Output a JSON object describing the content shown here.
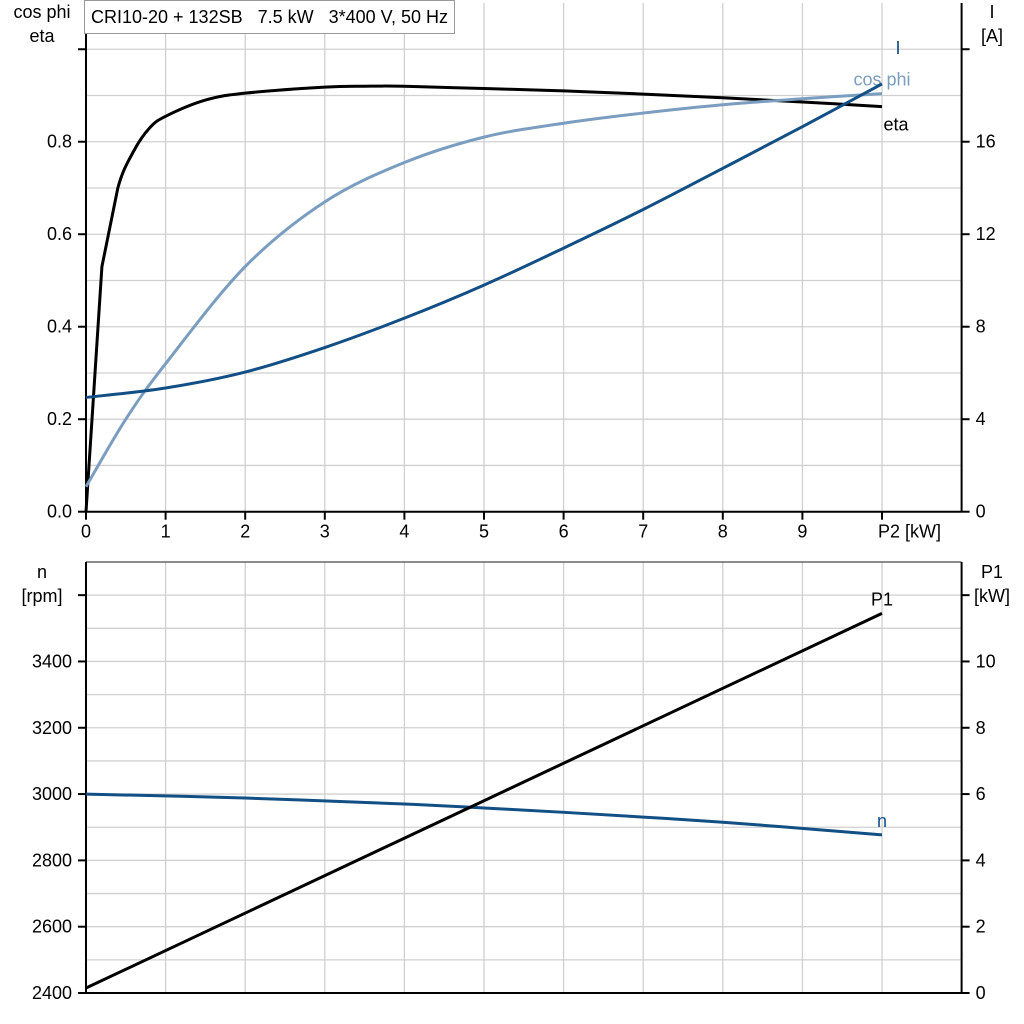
{
  "title": "CRI10-20 + 132SB   7.5 kW   3*400 V, 50 Hz",
  "colors": {
    "eta": "#000000",
    "cos_phi": "#7a9dc0",
    "I": "#124f85",
    "n": "#124f85",
    "P1": "#000000",
    "grid": "#d0d0d0"
  },
  "chart_data": [
    {
      "type": "line",
      "xlabel": "P2 [kW]",
      "ylabel_left": [
        "cos phi",
        "eta"
      ],
      "ylabel_right": [
        "I",
        "[A]"
      ],
      "xlim": [
        0,
        11
      ],
      "ylim_left": [
        0,
        1.1
      ],
      "ylim_right": [
        0,
        22
      ],
      "x_ticks": [
        "0",
        "1",
        "2",
        "3",
        "4",
        "5",
        "6",
        "7",
        "8",
        "9"
      ],
      "y_ticks_left": [
        "0.0",
        "0.2",
        "0.4",
        "0.6",
        "0.8"
      ],
      "y_ticks_right": [
        "0",
        "4",
        "8",
        "12",
        "16"
      ],
      "grid": true,
      "series": [
        {
          "name": "eta",
          "axis": "left",
          "x": [
            0,
            0.2,
            0.4,
            0.6,
            0.8,
            1,
            1.5,
            2,
            3,
            3.5,
            4,
            5,
            6,
            7,
            8,
            9,
            10
          ],
          "y": [
            0,
            0.53,
            0.7,
            0.78,
            0.83,
            0.855,
            0.89,
            0.905,
            0.918,
            0.92,
            0.92,
            0.915,
            0.91,
            0.903,
            0.895,
            0.886,
            0.876
          ]
        },
        {
          "name": "cos phi",
          "axis": "left",
          "x": [
            0,
            0.5,
            1,
            2,
            3,
            4,
            5,
            6,
            7,
            8,
            9,
            10
          ],
          "y": [
            0.054,
            0.2,
            0.32,
            0.53,
            0.67,
            0.755,
            0.81,
            0.84,
            0.862,
            0.88,
            0.893,
            0.904
          ]
        },
        {
          "name": "I",
          "axis": "right",
          "x": [
            0,
            1,
            2,
            3,
            4,
            5,
            6,
            7,
            8,
            9,
            10
          ],
          "y": [
            4.94,
            5.35,
            6.04,
            7.1,
            8.37,
            9.8,
            11.4,
            13.07,
            14.85,
            16.65,
            18.5
          ]
        }
      ]
    },
    {
      "type": "line",
      "ylabel_left": [
        "n",
        "[rpm]"
      ],
      "ylabel_right": [
        "P1",
        "[kW]"
      ],
      "xlim": [
        0,
        11
      ],
      "ylim_left": [
        2400,
        3700
      ],
      "ylim_right": [
        0,
        13
      ],
      "y_ticks_left": [
        "2400",
        "2600",
        "2800",
        "3000",
        "3200",
        "3400"
      ],
      "y_ticks_right": [
        "0",
        "2",
        "4",
        "6",
        "8",
        "10"
      ],
      "grid": true,
      "series": [
        {
          "name": "n",
          "axis": "left",
          "x": [
            0,
            2,
            4,
            5,
            6,
            8,
            10
          ],
          "y": [
            3000,
            2988,
            2970,
            2958,
            2945,
            2915,
            2877
          ]
        },
        {
          "name": "P1",
          "axis": "right",
          "x": [
            0,
            10
          ],
          "y": [
            0.15,
            11.45
          ]
        }
      ]
    }
  ]
}
